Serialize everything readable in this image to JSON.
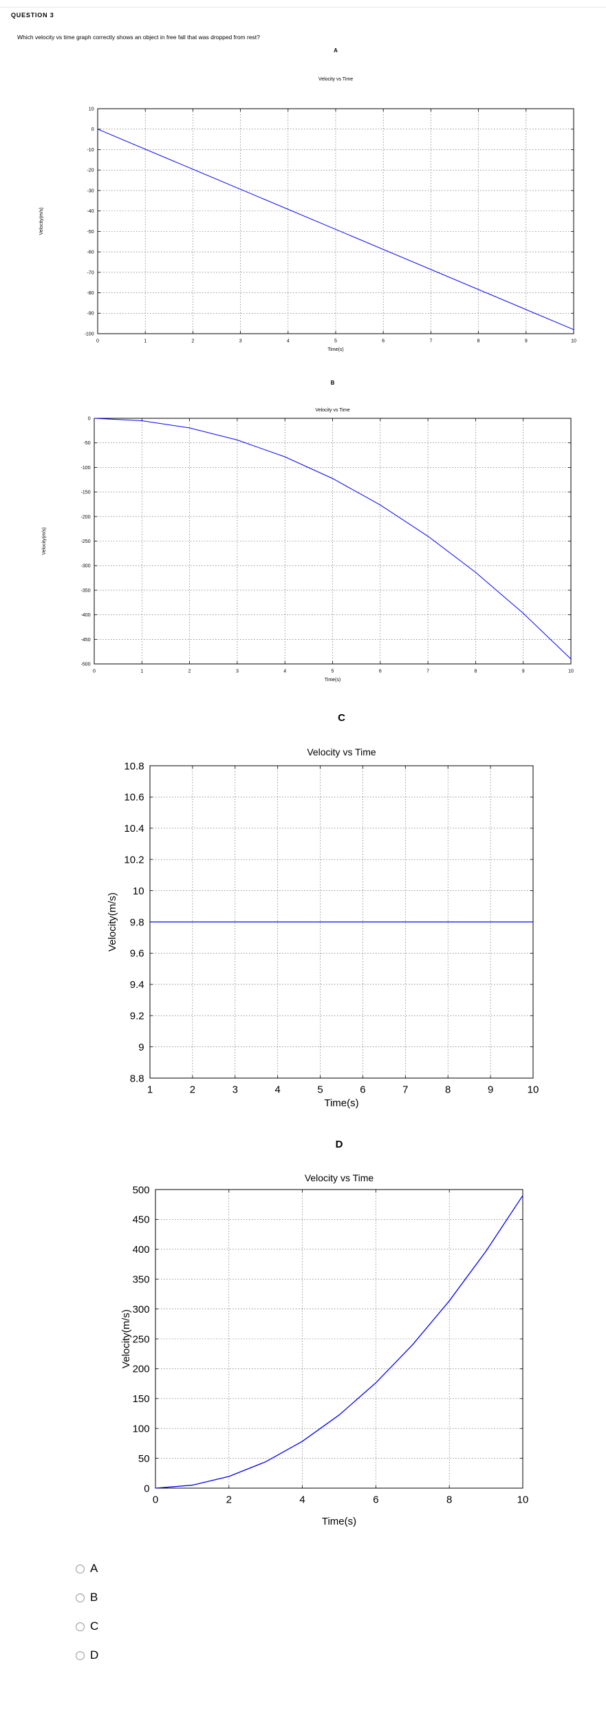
{
  "question": {
    "title": "QUESTION 3",
    "text": "Which velocity vs time graph correctly shows an object in free fall that was dropped from rest?"
  },
  "options": [
    "A",
    "B",
    "C",
    "D"
  ],
  "chart_data": [
    {
      "label": "A",
      "type": "line",
      "title": "Velocity vs Time",
      "xlabel": "Time(s)",
      "ylabel": "Velocity(m/s)",
      "xlim": [
        0,
        10
      ],
      "ylim": [
        -100,
        10
      ],
      "xticks": [
        0,
        1,
        2,
        3,
        4,
        5,
        6,
        7,
        8,
        9,
        10
      ],
      "yticks": [
        10,
        0,
        -10,
        -20,
        -30,
        -40,
        -50,
        -60,
        -70,
        -80,
        -90,
        -100
      ],
      "grid": true,
      "series": [
        {
          "color": "#0000ff",
          "x": [
            0,
            10
          ],
          "y": [
            0,
            -98
          ]
        }
      ]
    },
    {
      "label": "B",
      "type": "line",
      "title": "Velocity vs Time",
      "xlabel": "Time(s)",
      "ylabel": "Velocity(m/s)",
      "xlim": [
        0,
        10
      ],
      "ylim": [
        -500,
        0
      ],
      "xticks": [
        0,
        1,
        2,
        3,
        4,
        5,
        6,
        7,
        8,
        9,
        10
      ],
      "yticks": [
        0,
        -50,
        -100,
        -150,
        -200,
        -250,
        -300,
        -350,
        -400,
        -450,
        -500
      ],
      "grid": true,
      "series": [
        {
          "color": "#0000ff",
          "x": [
            0,
            1,
            2,
            3,
            4,
            5,
            6,
            7,
            8,
            9,
            10
          ],
          "y": [
            0,
            -4.9,
            -19.6,
            -44.1,
            -78.4,
            -122.5,
            -176.4,
            -240.1,
            -313.6,
            -396.9,
            -490
          ]
        }
      ]
    },
    {
      "label": "C",
      "type": "line",
      "title": "Velocity vs Time",
      "xlabel": "Time(s)",
      "ylabel": "Velocity(m/s)",
      "xlim": [
        1,
        10
      ],
      "ylim": [
        8.8,
        10.8
      ],
      "xticks": [
        1,
        2,
        3,
        4,
        5,
        6,
        7,
        8,
        9,
        10
      ],
      "yticks": [
        10.8,
        10.6,
        10.4,
        10.2,
        10,
        9.8,
        9.6,
        9.4,
        9.2,
        9,
        8.8
      ],
      "grid": true,
      "series": [
        {
          "color": "#0000ff",
          "x": [
            1,
            10
          ],
          "y": [
            9.8,
            9.8
          ]
        }
      ]
    },
    {
      "label": "D",
      "type": "line",
      "title": "Velocity vs Time",
      "xlabel": "Time(s)",
      "ylabel": "Velocity(m/s)",
      "xlim": [
        0,
        10
      ],
      "ylim": [
        0,
        500
      ],
      "xticks": [
        0,
        2,
        4,
        6,
        8,
        10
      ],
      "yticks": [
        500,
        450,
        400,
        350,
        300,
        250,
        200,
        150,
        100,
        50,
        0
      ],
      "grid": true,
      "series": [
        {
          "color": "#0000ff",
          "x": [
            0,
            1,
            2,
            3,
            4,
            5,
            6,
            7,
            8,
            9,
            10
          ],
          "y": [
            0,
            4.9,
            19.6,
            44.1,
            78.4,
            122.5,
            176.4,
            240.1,
            313.6,
            396.9,
            490
          ]
        }
      ]
    }
  ]
}
